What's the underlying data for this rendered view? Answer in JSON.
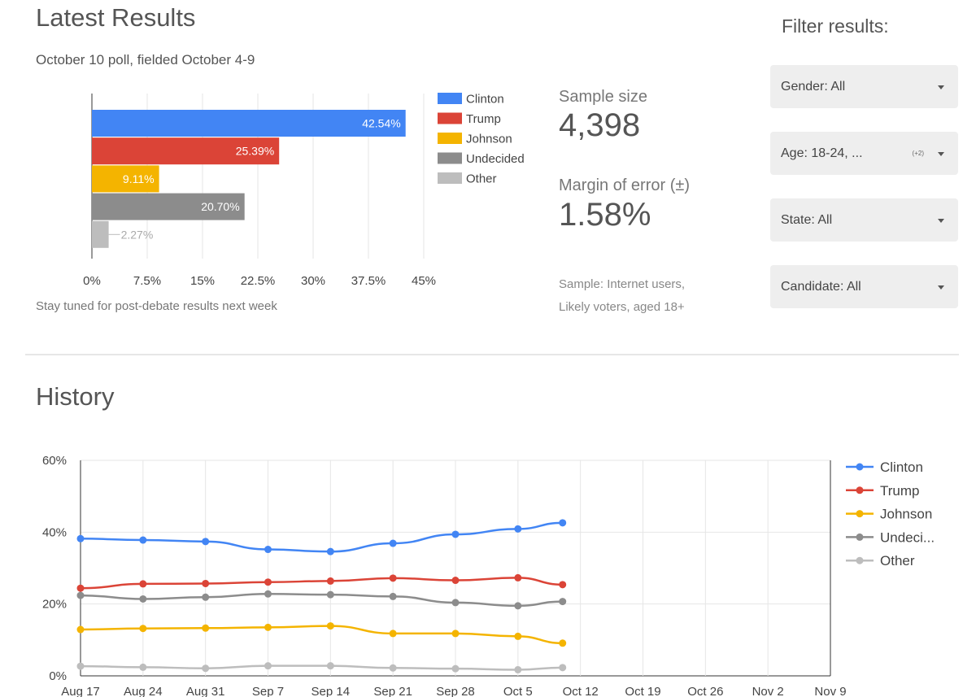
{
  "latest": {
    "title": "Latest Results",
    "subtitle": "October 10 poll, fielded October 4-9",
    "footnote": "Stay tuned for post-debate results next week"
  },
  "stats": {
    "sample_size_label": "Sample size",
    "sample_size_value": "4,398",
    "moe_label": "Margin of error (±)",
    "moe_value": "1.58%",
    "sample_note_1": "Sample: Internet users,",
    "sample_note_2": "Likely voters, aged 18+"
  },
  "filters": {
    "title": "Filter results:",
    "items": [
      {
        "label": "Gender: All",
        "extra": ""
      },
      {
        "label": "Age: 18-24, ...",
        "extra": "(+2)"
      },
      {
        "label": "State: All",
        "extra": ""
      },
      {
        "label": "Candidate: All",
        "extra": ""
      }
    ]
  },
  "history": {
    "title": "History"
  },
  "colors": {
    "Clinton": "#4285f4",
    "Trump": "#db4437",
    "Johnson": "#f4b400",
    "Undecided": "#8c8c8c",
    "Other": "#bdbdbd"
  },
  "chart_data": [
    {
      "type": "bar",
      "orientation": "horizontal",
      "categories": [
        "Clinton",
        "Trump",
        "Johnson",
        "Undecided",
        "Other"
      ],
      "values": [
        42.54,
        25.39,
        9.11,
        20.7,
        2.27
      ],
      "data_labels": [
        "42.54%",
        "25.39%",
        "9.11%",
        "20.70%",
        "2.27%"
      ],
      "xlim": [
        0,
        45
      ],
      "x_ticks": [
        "0%",
        "7.5%",
        "15%",
        "22.5%",
        "30%",
        "37.5%",
        "45%"
      ],
      "x_tick_values": [
        0,
        7.5,
        15,
        22.5,
        30,
        37.5,
        45
      ],
      "legend": [
        "Clinton",
        "Trump",
        "Johnson",
        "Undecided",
        "Other"
      ],
      "legend_position": "right",
      "grid": true
    },
    {
      "type": "line",
      "x": [
        "Aug 17",
        "Aug 24",
        "Aug 31",
        "Sep 7",
        "Sep 14",
        "Sep 21",
        "Sep 28",
        "Oct 5",
        "Oct 10"
      ],
      "x_tick_labels": [
        "Aug 17",
        "Aug 24",
        "Aug 31",
        "Sep 7",
        "Sep 14",
        "Sep 21",
        "Sep 28",
        "Oct 5",
        "Oct 12",
        "Oct 19",
        "Oct 26",
        "Nov 2",
        "Nov 9"
      ],
      "x_days": [
        0,
        7,
        14,
        21,
        28,
        35,
        42,
        49,
        54
      ],
      "x_range_days": [
        0,
        84
      ],
      "y_ticks": [
        "0%",
        "20%",
        "40%",
        "60%"
      ],
      "y_tick_values": [
        0,
        20,
        40,
        60
      ],
      "ylim": [
        0,
        60
      ],
      "series": [
        {
          "name": "Clinton",
          "values": [
            38.2,
            37.8,
            37.4,
            35.2,
            34.6,
            36.9,
            39.4,
            40.9,
            42.6
          ]
        },
        {
          "name": "Trump",
          "values": [
            24.4,
            25.6,
            25.7,
            26.1,
            26.4,
            27.2,
            26.6,
            27.3,
            25.4
          ]
        },
        {
          "name": "Johnson",
          "values": [
            12.9,
            13.2,
            13.3,
            13.5,
            13.9,
            11.8,
            11.8,
            11.0,
            9.1
          ]
        },
        {
          "name": "Undecided",
          "values": [
            22.4,
            21.4,
            21.9,
            22.8,
            22.6,
            22.1,
            20.4,
            19.5,
            20.7
          ]
        },
        {
          "name": "Other",
          "values": [
            2.7,
            2.4,
            2.1,
            2.8,
            2.8,
            2.2,
            2.0,
            1.7,
            2.3
          ]
        }
      ],
      "legend": [
        "Clinton",
        "Trump",
        "Johnson",
        "Undeci...",
        "Other"
      ],
      "legend_position": "right",
      "grid": true
    }
  ]
}
